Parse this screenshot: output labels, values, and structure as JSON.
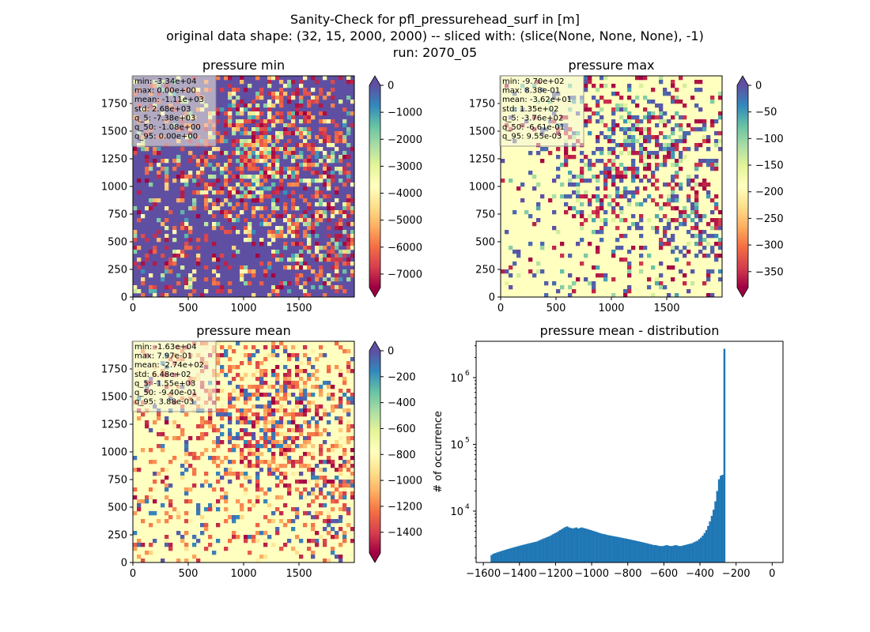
{
  "figure": {
    "title_lines": [
      "Sanity-Check for pfl_pressurehead_surf in [m]",
      "original data shape: (32, 15, 2000, 2000) -- sliced with: (slice(None, None, None), -1)",
      "run: 2070_05"
    ]
  },
  "colors": {
    "spectral": [
      "#9e0142",
      "#d53e4f",
      "#f46d43",
      "#fdae61",
      "#fee08b",
      "#ffffbf",
      "#e6f598",
      "#abdda4",
      "#66c2a5",
      "#3288bd",
      "#5e4fa2"
    ],
    "hist_bar": "#1f77b4",
    "stats_box_bg": "#f5f5dc",
    "stats_box_edge": "#888888"
  },
  "chart_data": [
    {
      "type": "heatmap",
      "title": "pressure min",
      "colormap": "Spectral",
      "xlim": [
        0,
        2000
      ],
      "ylim": [
        0,
        2000
      ],
      "xticks": [
        "0",
        "500",
        "1000",
        "1500"
      ],
      "yticks": [
        "0",
        "250",
        "500",
        "750",
        "1000",
        "1250",
        "1500",
        "1750"
      ],
      "colorbar": {
        "vmin": -7500,
        "vmax": 0,
        "ticks": [
          "0",
          "−1000",
          "−2000",
          "−3000",
          "−4000",
          "−5000",
          "−6000",
          "−7000"
        ],
        "tick_values": [
          0,
          -1000,
          -2000,
          -3000,
          -4000,
          -5000,
          -6000,
          -7000
        ],
        "extend": "both"
      },
      "stats": [
        "min: -3.34e+04",
        "max: 0.00e+00",
        "mean: -1.11e+03",
        "std: 2.68e+03",
        "q_5: -7.38e+03",
        "q_50: -1.08e+00",
        "q_95: 0.00e+00"
      ]
    },
    {
      "type": "heatmap",
      "title": "pressure max",
      "colormap": "Spectral",
      "xlim": [
        0,
        2000
      ],
      "ylim": [
        0,
        2000
      ],
      "xticks": [
        "0",
        "500",
        "1000",
        "1500"
      ],
      "yticks": [
        "0",
        "250",
        "500",
        "750",
        "1000",
        "1250",
        "1500",
        "1750"
      ],
      "colorbar": {
        "vmin": -380,
        "vmax": 0,
        "ticks": [
          "0",
          "−50",
          "−100",
          "−150",
          "−200",
          "−250",
          "−300",
          "−350"
        ],
        "tick_values": [
          0,
          -50,
          -100,
          -150,
          -200,
          -250,
          -300,
          -350
        ],
        "extend": "both"
      },
      "stats": [
        "min: -9.70e+02",
        "max: 8.38e-01",
        "mean: -3.62e+01",
        "std: 1.35e+02",
        "q_5: -3.76e+02",
        "q_50: -6.61e-01",
        "q_95: 9.55e-03"
      ]
    },
    {
      "type": "heatmap",
      "title": "pressure mean",
      "colormap": "Spectral",
      "xlim": [
        0,
        2000
      ],
      "ylim": [
        0,
        2000
      ],
      "xticks": [
        "0",
        "500",
        "1000",
        "1500"
      ],
      "yticks": [
        "0",
        "250",
        "500",
        "750",
        "1000",
        "1250",
        "1500",
        "1750"
      ],
      "colorbar": {
        "vmin": -1560,
        "vmax": 0,
        "ticks": [
          "0",
          "−200",
          "−400",
          "−600",
          "−800",
          "−1000",
          "−1200",
          "−1400"
        ],
        "tick_values": [
          0,
          -200,
          -400,
          -600,
          -800,
          -1000,
          -1200,
          -1400
        ],
        "extend": "both"
      },
      "stats": [
        "min: -1.63e+04",
        "max: 7.97e-01",
        "mean: -2.74e+02",
        "std: 6.48e+02",
        "q_5: -1.55e+03",
        "q_50: -9.40e-01",
        "q_95: 3.88e-03"
      ]
    },
    {
      "type": "bar",
      "title": "pressure mean - distribution",
      "ylabel": "# of occurrence",
      "xlabel": "",
      "yscale": "log",
      "xlim": [
        -1640,
        60
      ],
      "ylim": [
        1700,
        3500000
      ],
      "xticks": [
        "−1600",
        "−1400",
        "−1200",
        "−1000",
        "−800",
        "−600",
        "−400",
        "−200",
        "0"
      ],
      "xtick_values": [
        -1600,
        -1400,
        -1200,
        -1000,
        -800,
        -600,
        -400,
        -200,
        0
      ],
      "yticks": [
        "10",
        "10",
        "10"
      ],
      "ytick_exponents": [
        "4",
        "5",
        "6"
      ],
      "ytick_values": [
        10000,
        100000,
        1000000
      ],
      "bin_start": -1560,
      "bin_width": 10,
      "values": [
        2200,
        2300,
        2350,
        2400,
        2450,
        2500,
        2550,
        2600,
        2650,
        2700,
        2750,
        2800,
        2850,
        2900,
        2950,
        3000,
        3050,
        3100,
        3150,
        3200,
        3250,
        3300,
        3350,
        3400,
        3450,
        3500,
        3600,
        3700,
        3800,
        3900,
        4000,
        4100,
        4200,
        4350,
        4500,
        4650,
        4800,
        5000,
        5200,
        5400,
        5600,
        5800,
        5900,
        5700,
        5600,
        5500,
        5600,
        5700,
        5500,
        5600,
        5700,
        5600,
        5500,
        5400,
        5300,
        5200,
        5100,
        5000,
        4900,
        4800,
        4700,
        4600,
        4550,
        4500,
        4400,
        4350,
        4300,
        4250,
        4200,
        4150,
        4100,
        4050,
        4000,
        3950,
        3900,
        3850,
        3800,
        3750,
        3700,
        3650,
        3600,
        3550,
        3500,
        3450,
        3400,
        3350,
        3300,
        3250,
        3200,
        3150,
        3100,
        3100,
        3050,
        3000,
        3000,
        3000,
        3050,
        3100,
        3050,
        3000,
        3000,
        3050,
        3100,
        3050,
        3000,
        3000,
        3050,
        3100,
        3150,
        3200,
        3250,
        3300,
        3400,
        3500,
        3600,
        3800,
        4000,
        4300,
        4700,
        5200,
        6000,
        7000,
        8500,
        10500,
        14000,
        20000,
        30000,
        34000,
        35000,
        2700000
      ]
    }
  ]
}
